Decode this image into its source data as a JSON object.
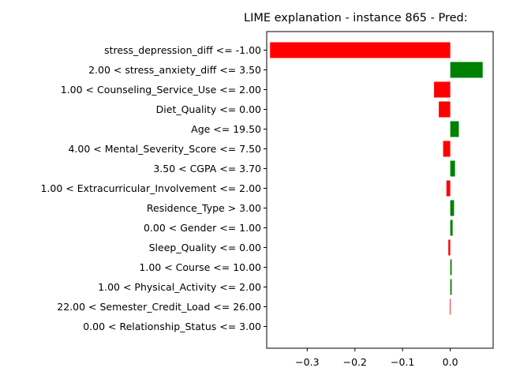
{
  "chart_data": {
    "type": "bar",
    "orientation": "horizontal",
    "title": "LIME explanation - instance 865 - Pred: ",
    "xlabel": "",
    "ylabel": "",
    "xlim": [
      -0.385,
      0.09
    ],
    "xticks": [
      -0.3,
      -0.2,
      -0.1,
      0.0
    ],
    "xtick_labels": [
      "−0.3",
      "−0.2",
      "−0.1",
      "0.0"
    ],
    "grid": false,
    "colors": {
      "positive": "#008000",
      "negative": "#ff0000"
    },
    "categories": [
      "stress_depression_diff <= -1.00",
      "2.00 < stress_anxiety_diff <= 3.50",
      "1.00 < Counseling_Service_Use <= 2.00",
      "Diet_Quality <= 0.00",
      "Age <= 19.50",
      "4.00 < Mental_Severity_Score <= 7.50",
      "3.50 < CGPA <= 3.70",
      "1.00 < Extracurricular_Involvement <= 2.00",
      "Residence_Type > 3.00",
      "0.00 < Gender <= 1.00",
      "Sleep_Quality <= 0.00",
      "1.00 < Course <= 10.00",
      "1.00 < Physical_Activity <= 2.00",
      "22.00 < Semester_Credit_Load <= 26.00",
      "0.00 < Relationship_Status <= 3.00"
    ],
    "values": [
      -0.378,
      0.068,
      -0.034,
      -0.024,
      0.018,
      -0.015,
      0.01,
      -0.008,
      0.008,
      0.005,
      -0.004,
      0.003,
      0.003,
      -0.001,
      0.0
    ]
  }
}
